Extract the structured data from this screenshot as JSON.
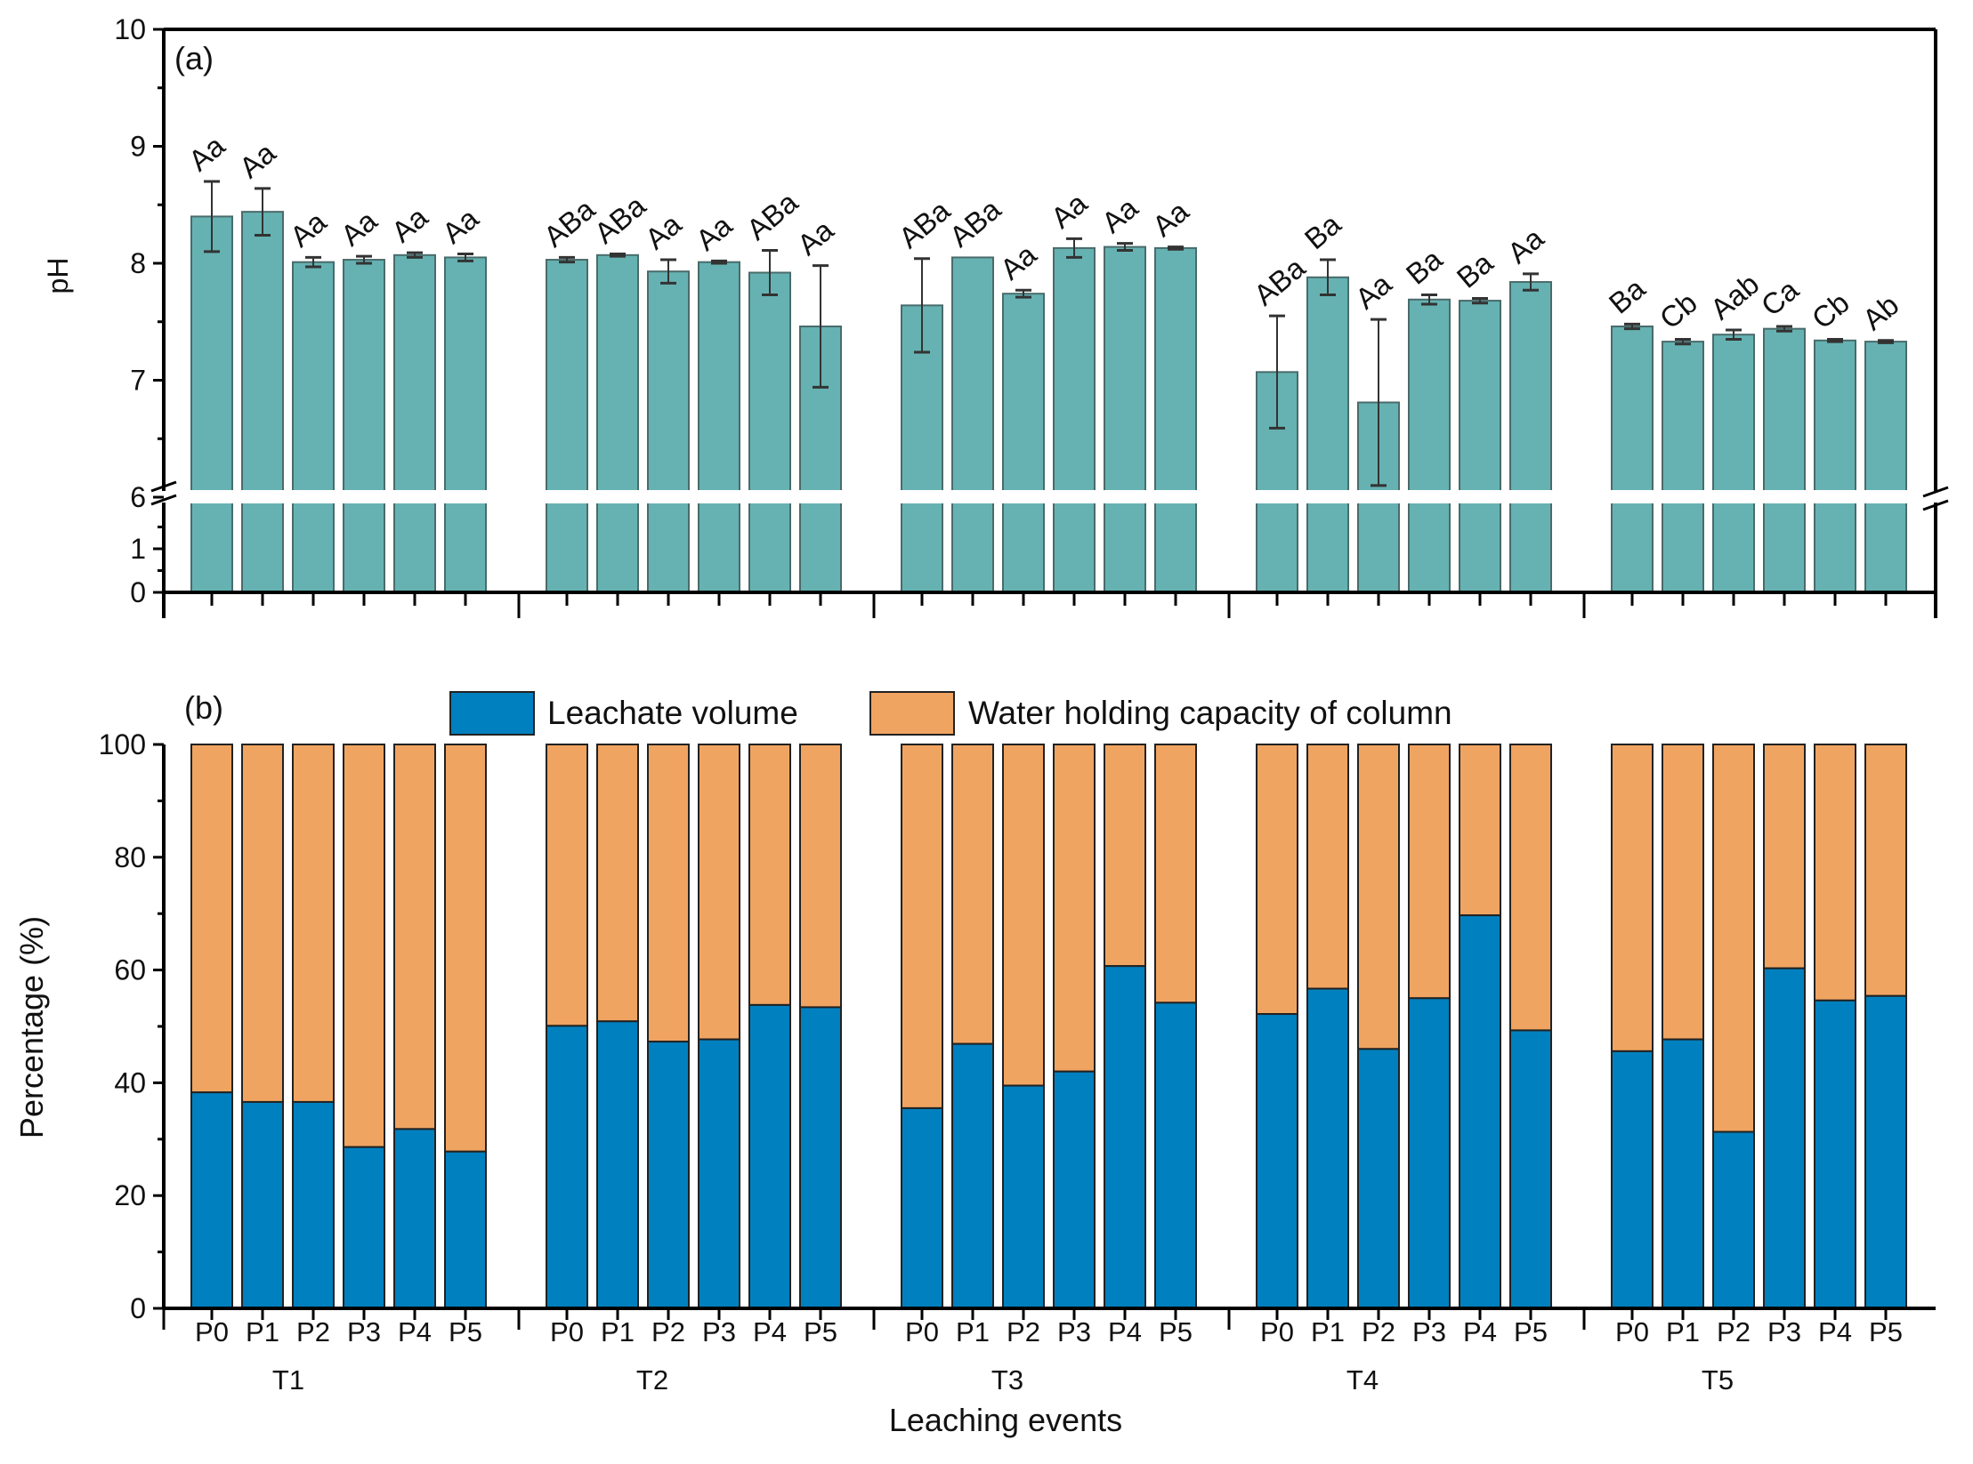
{
  "chart_data": [
    {
      "panel_label": "(a)",
      "type": "bar",
      "ylabel": "pH",
      "ylim_upper": [
        6,
        10
      ],
      "ylim_lower": [
        0,
        1.5
      ],
      "axis_break": [
        1.5,
        6
      ],
      "yticks": [
        0,
        1,
        6,
        7,
        8,
        9,
        10
      ],
      "color": "#66b2b2",
      "groups": [
        "T1",
        "T2",
        "T3",
        "T4",
        "T5"
      ],
      "categories": [
        "P0",
        "P1",
        "P2",
        "P3",
        "P4",
        "P5"
      ],
      "values": [
        [
          8.4,
          8.44,
          8.01,
          8.03,
          8.07,
          8.05
        ],
        [
          8.03,
          8.07,
          7.93,
          8.01,
          7.92,
          7.46
        ],
        [
          7.64,
          8.05,
          7.74,
          8.13,
          8.14,
          8.13
        ],
        [
          7.07,
          7.88,
          6.81,
          7.69,
          7.68,
          7.84
        ],
        [
          7.46,
          7.33,
          7.39,
          7.44,
          7.34,
          7.33
        ]
      ],
      "errors": [
        [
          0.3,
          0.2,
          0.04,
          0.03,
          0.02,
          0.03
        ],
        [
          0.02,
          0.01,
          0.1,
          0.01,
          0.19,
          0.52
        ],
        [
          0.4,
          0.0,
          0.03,
          0.08,
          0.03,
          0.01
        ],
        [
          0.48,
          0.15,
          0.71,
          0.04,
          0.02,
          0.07
        ],
        [
          0.02,
          0.02,
          0.04,
          0.02,
          0.01,
          0.01
        ]
      ],
      "letters": [
        [
          "Aa",
          "Aa",
          "Aa",
          "Aa",
          "Aa",
          "Aa"
        ],
        [
          "ABa",
          "ABa",
          "Aa",
          "Aa",
          "ABa",
          "Aa"
        ],
        [
          "ABa",
          "ABa",
          "Aa",
          "Aa",
          "Aa",
          "Aa"
        ],
        [
          "ABa",
          "Ba",
          "Aa",
          "Ba",
          "Ba",
          "Aa"
        ],
        [
          "Ba",
          "Cb",
          "Aab",
          "Ca",
          "Cb",
          "Ab"
        ]
      ]
    },
    {
      "panel_label": "(b)",
      "type": "bar",
      "stacked": true,
      "ylabel": "Percentage (%)",
      "xlabel": "Leaching events",
      "ylim": [
        0,
        100
      ],
      "yticks": [
        0,
        20,
        40,
        60,
        80,
        100
      ],
      "legend_placement": "top",
      "groups": [
        "T1",
        "T2",
        "T3",
        "T4",
        "T5"
      ],
      "categories": [
        "P0",
        "P1",
        "P2",
        "P3",
        "P4",
        "P5"
      ],
      "series": [
        {
          "name": "Leachate volume",
          "color": "#0080bf",
          "values": [
            [
              38.3,
              36.6,
              36.6,
              28.6,
              31.8,
              27.8
            ],
            [
              50.1,
              50.9,
              47.3,
              47.7,
              53.8,
              53.4
            ],
            [
              35.5,
              46.9,
              39.5,
              42.0,
              60.7,
              54.2
            ],
            [
              52.2,
              56.7,
              46.0,
              55.0,
              69.7,
              49.3
            ],
            [
              45.6,
              47.7,
              31.3,
              60.3,
              54.6,
              55.4
            ]
          ]
        },
        {
          "name": "Water holding capacity of column",
          "color": "#f0a461",
          "values": [
            [
              61.7,
              63.4,
              63.4,
              71.4,
              68.2,
              72.2
            ],
            [
              49.9,
              49.1,
              52.7,
              52.3,
              46.2,
              46.6
            ],
            [
              64.5,
              53.1,
              60.5,
              58.0,
              39.3,
              45.8
            ],
            [
              47.8,
              43.3,
              54.0,
              45.0,
              30.3,
              50.7
            ],
            [
              54.4,
              52.3,
              68.7,
              39.7,
              45.4,
              44.6
            ]
          ]
        }
      ]
    }
  ]
}
